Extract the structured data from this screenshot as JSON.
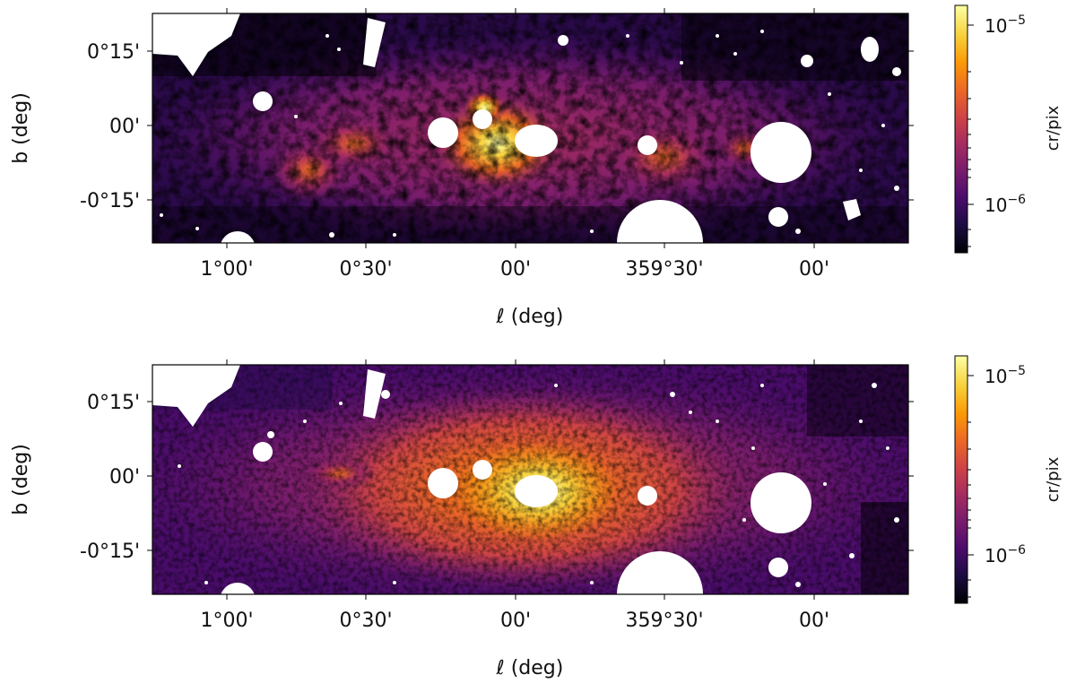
{
  "panels": [
    {
      "x_axis_label": "ℓ (deg)",
      "y_axis_label": "b (deg)",
      "x_tick_labels": [
        "1°00'",
        "0°30'",
        "00'",
        "359°30'",
        "00'"
      ],
      "y_tick_labels": [
        "0°15'",
        "00'",
        "-0°15'"
      ],
      "colorbar_label": "cr/pix",
      "colorbar_tick_labels": [
        {
          "base": "10",
          "exp": "−5"
        },
        {
          "base": "10",
          "exp": "−6"
        }
      ],
      "colormap": [
        "#000004",
        "#1b0c41",
        "#4a0c6b",
        "#781c6d",
        "#a52c60",
        "#cf4446",
        "#ed6925",
        "#fb9b06",
        "#f7d13d",
        "#fcffa4"
      ]
    },
    {
      "x_axis_label": "ℓ (deg)",
      "y_axis_label": "b (deg)",
      "x_tick_labels": [
        "1°00'",
        "0°30'",
        "00'",
        "359°30'",
        "00'"
      ],
      "y_tick_labels": [
        "0°15'",
        "00'",
        "-0°15'"
      ],
      "colorbar_label": "cr/pix",
      "colorbar_tick_labels": [
        {
          "base": "10",
          "exp": "−5"
        },
        {
          "base": "10",
          "exp": "−6"
        }
      ],
      "colormap": [
        "#000004",
        "#1b0c41",
        "#4a0c6b",
        "#781c6d",
        "#a52c60",
        "#cf4446",
        "#ed6925",
        "#fb9b06",
        "#f7d13d",
        "#fcffa4"
      ]
    }
  ]
}
